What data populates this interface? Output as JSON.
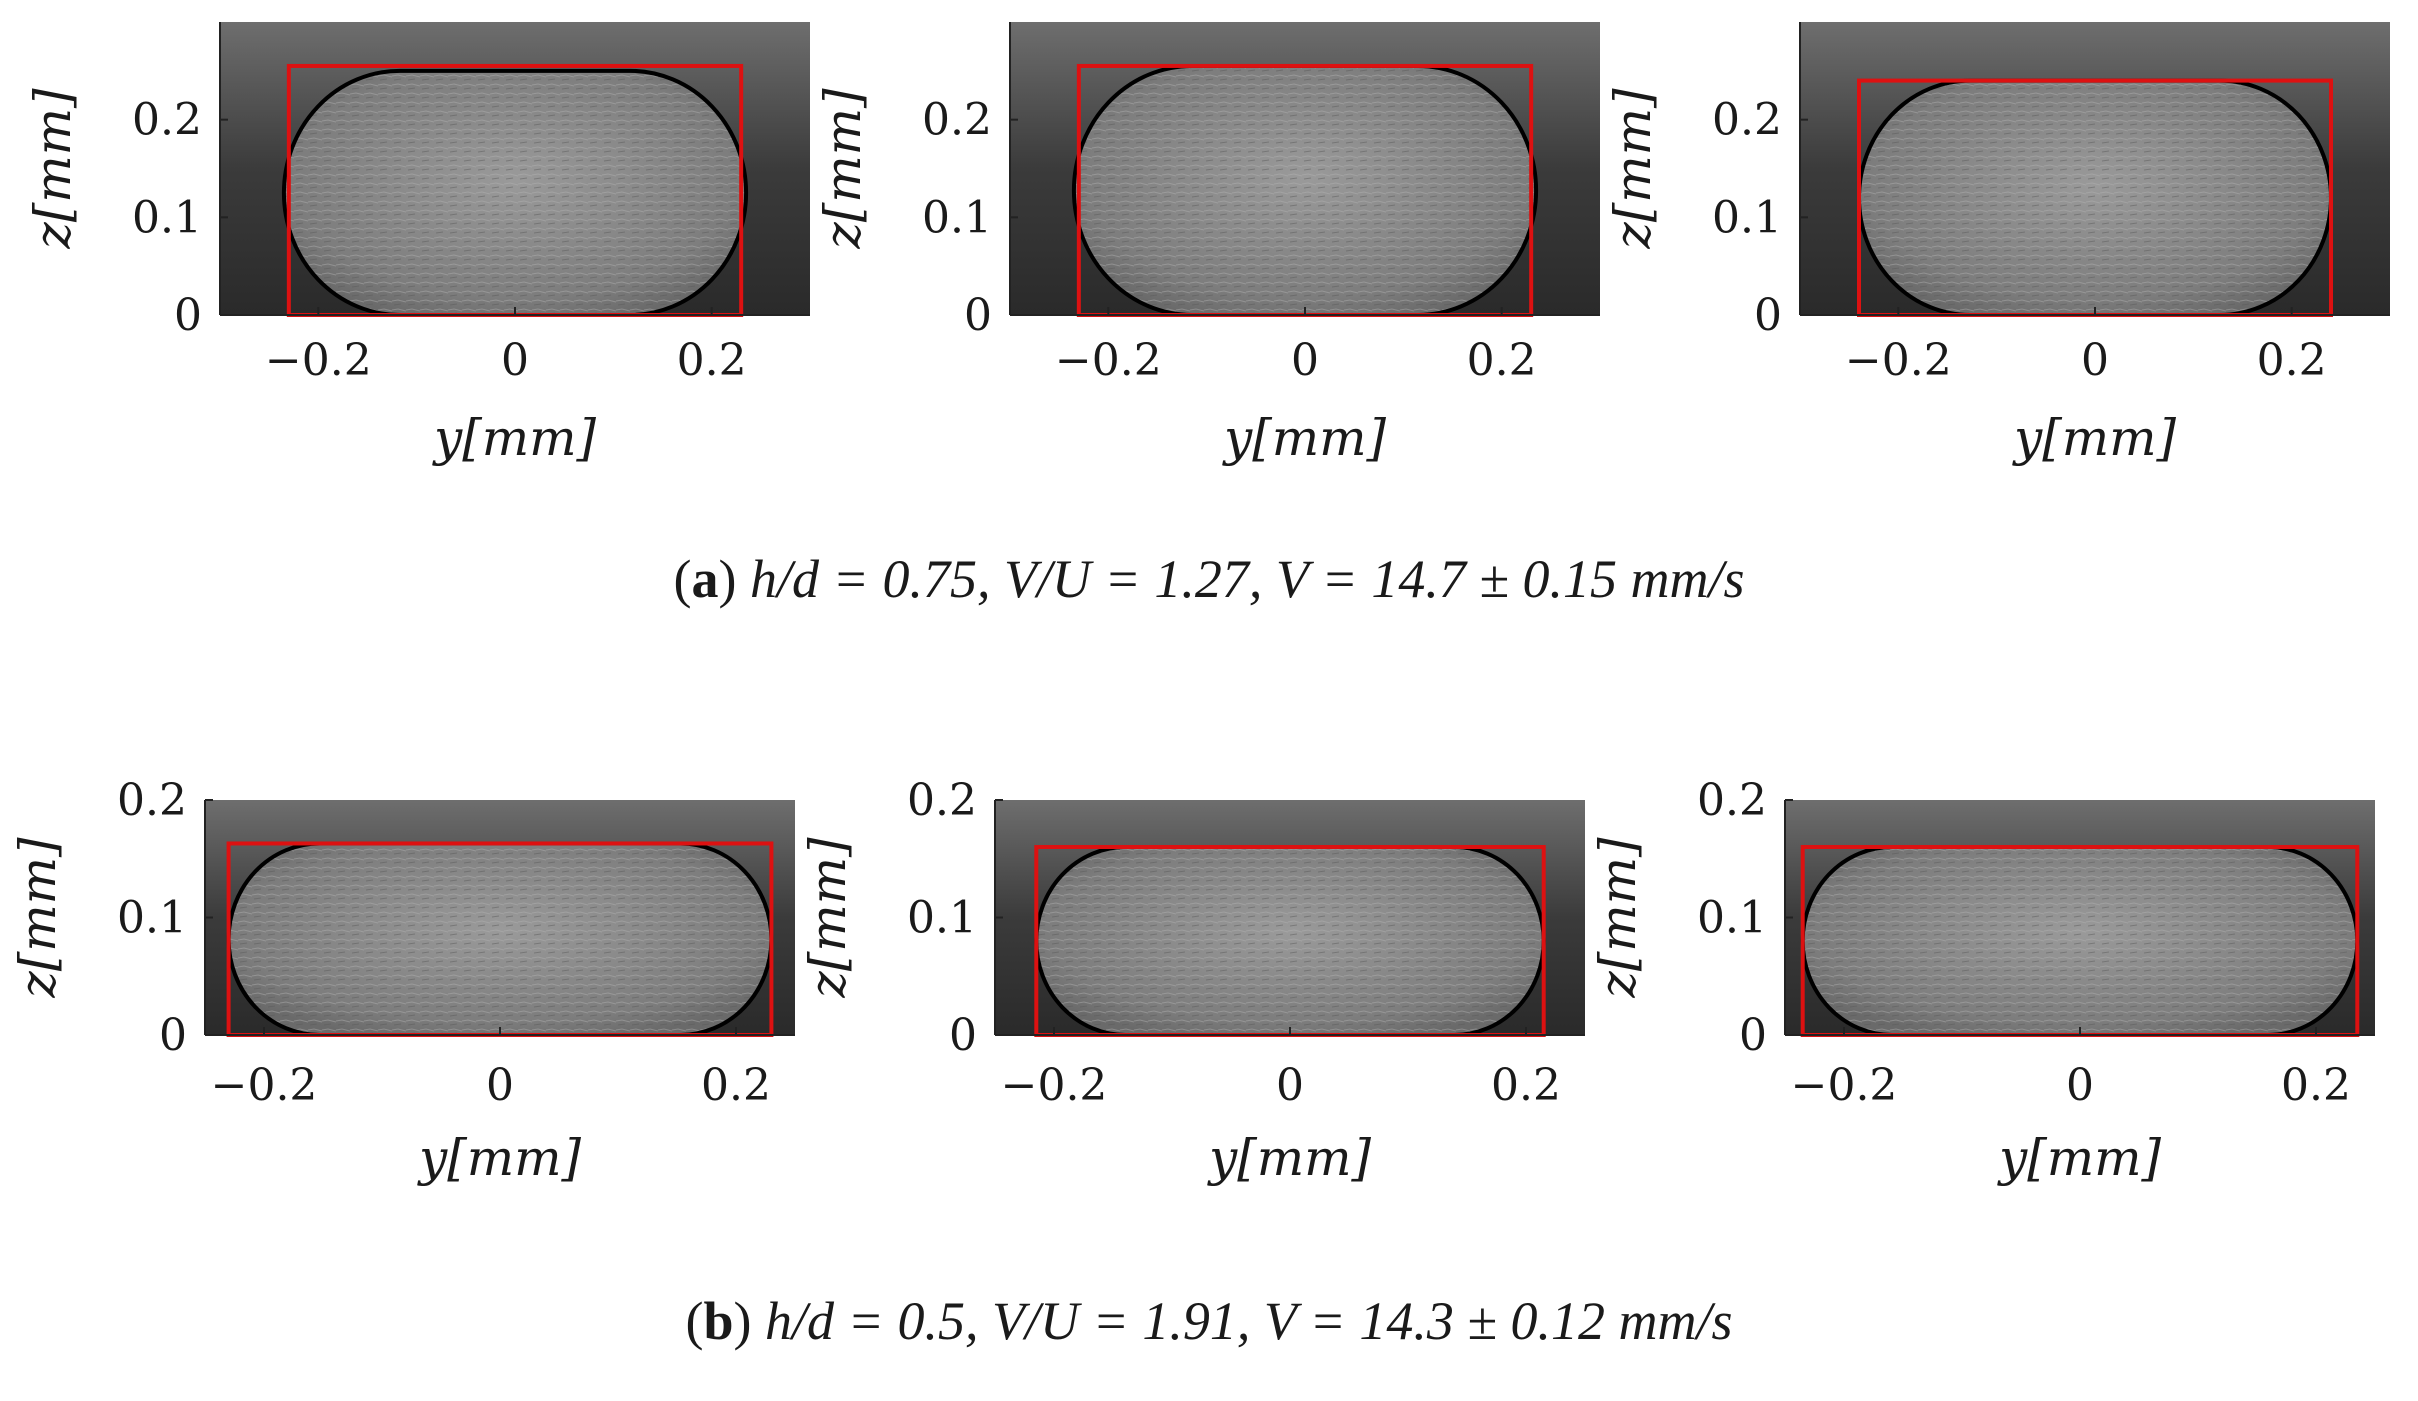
{
  "figure": {
    "rows": [
      {
        "id": "a",
        "caption": {
          "label": "a",
          "text": "h/d = 0.75, V/U = 1.27, V = 14.7 ± 0.15 mm/s"
        },
        "panels": [
          {
            "xlabel": "y[mm]",
            "ylabel": "z[mm]",
            "xticks": [
              "−0.2",
              "0",
              "0.2"
            ],
            "yticks": [
              "0",
              "0.1",
              "0.2"
            ],
            "xlim": [
              -0.3,
              0.3
            ],
            "ylim": [
              0,
              0.3
            ],
            "rect": {
              "x": [
                -0.23,
                0.23
              ],
              "z": [
                0,
                0.255
              ]
            },
            "ellipse": {
              "x": [
                -0.235,
                0.235
              ],
              "z": [
                0,
                0.25
              ]
            }
          },
          {
            "xlabel": "y[mm]",
            "ylabel": "z[mm]",
            "xticks": [
              "−0.2",
              "0",
              "0.2"
            ],
            "yticks": [
              "0",
              "0.1",
              "0.2"
            ],
            "xlim": [
              -0.3,
              0.3
            ],
            "ylim": [
              0,
              0.3
            ],
            "rect": {
              "x": [
                -0.23,
                0.23
              ],
              "z": [
                0,
                0.255
              ]
            },
            "ellipse": {
              "x": [
                -0.235,
                0.235
              ],
              "z": [
                0,
                0.255
              ]
            }
          },
          {
            "xlabel": "y[mm]",
            "ylabel": "z[mm]",
            "xticks": [
              "−0.2",
              "0",
              "0.2"
            ],
            "yticks": [
              "0",
              "0.1",
              "0.2"
            ],
            "xlim": [
              -0.3,
              0.3
            ],
            "ylim": [
              0,
              0.3
            ],
            "rect": {
              "x": [
                -0.24,
                0.24
              ],
              "z": [
                0,
                0.24
              ]
            },
            "ellipse": {
              "x": [
                -0.24,
                0.24
              ],
              "z": [
                0,
                0.24
              ]
            }
          }
        ]
      },
      {
        "id": "b",
        "caption": {
          "label": "b",
          "text": "h/d = 0.5, V/U = 1.91, V = 14.3 ± 0.12 mm/s"
        },
        "panels": [
          {
            "xlabel": "y[mm]",
            "ylabel": "z[mm]",
            "xticks": [
              "−0.2",
              "0",
              "0.2"
            ],
            "yticks": [
              "0",
              "0.1",
              "0.2"
            ],
            "xlim": [
              -0.25,
              0.25
            ],
            "ylim": [
              0,
              0.2
            ],
            "rect": {
              "x": [
                -0.23,
                0.23
              ],
              "z": [
                0,
                0.163
              ]
            },
            "ellipse": {
              "x": [
                -0.23,
                0.23
              ],
              "z": [
                0,
                0.163
              ]
            }
          },
          {
            "xlabel": "y[mm]",
            "ylabel": "z[mm]",
            "xticks": [
              "−0.2",
              "0",
              "0.2"
            ],
            "yticks": [
              "0",
              "0.1",
              "0.2"
            ],
            "xlim": [
              -0.25,
              0.25
            ],
            "ylim": [
              0,
              0.2
            ],
            "rect": {
              "x": [
                -0.215,
                0.215
              ],
              "z": [
                0,
                0.16
              ]
            },
            "ellipse": {
              "x": [
                -0.215,
                0.215
              ],
              "z": [
                0,
                0.16
              ]
            }
          },
          {
            "xlabel": "y[mm]",
            "ylabel": "z[mm]",
            "xticks": [
              "−0.2",
              "0",
              "0.2"
            ],
            "yticks": [
              "0",
              "0.1",
              "0.2"
            ],
            "xlim": [
              -0.25,
              0.25
            ],
            "ylim": [
              0,
              0.2
            ],
            "rect": {
              "x": [
                -0.235,
                0.235
              ],
              "z": [
                0,
                0.16
              ]
            },
            "ellipse": {
              "x": [
                -0.235,
                0.235
              ],
              "z": [
                0,
                0.16
              ]
            }
          }
        ]
      }
    ]
  },
  "colors": {
    "frame": "#dd1111",
    "contour": "#000000",
    "image_bg": "#3a3a3a",
    "specimen": "#8a8a8a"
  }
}
